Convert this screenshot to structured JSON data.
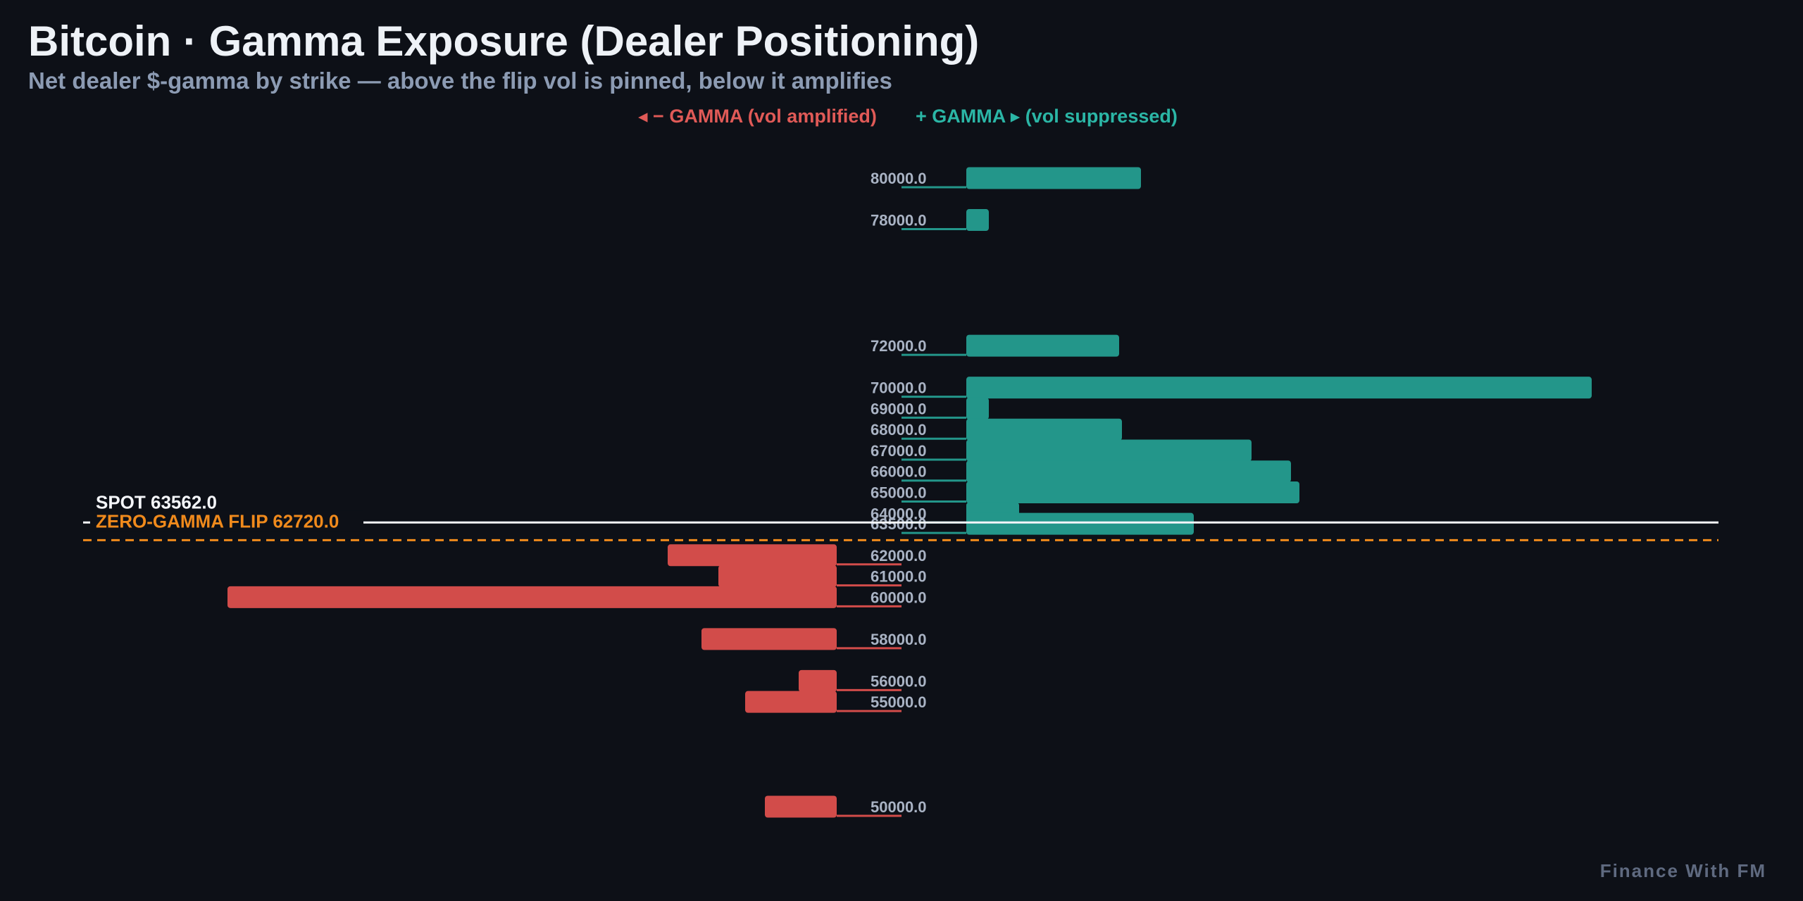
{
  "title": "Bitcoin · Gamma Exposure (Dealer Positioning)",
  "subtitle": "Net dealer $-gamma by strike — above the flip vol is pinned, below it amplifies",
  "legend": {
    "negative": "◂ − GAMMA (vol amplified)",
    "positive": "+ GAMMA ▸ (vol suppressed)"
  },
  "footer": "Finance With FM",
  "colors": {
    "background": "#0d1017",
    "positive": "#23968a",
    "negative": "#d24c4a",
    "spot": "#f4f6fa",
    "flip": "#f08a1c",
    "strike_label": "#a9b3c4"
  },
  "chart_data": {
    "type": "bar",
    "orientation": "horizontal",
    "y_axis": "strike",
    "x_axis": "net dealer $-gamma",
    "ylim": [
      48000,
      82000
    ],
    "strikes": [
      {
        "label": "80000.0",
        "strike": 80000,
        "gamma": 248
      },
      {
        "label": "78000.0",
        "strike": 78000,
        "gamma": 32
      },
      {
        "label": "72000.0",
        "strike": 72000,
        "gamma": 217
      },
      {
        "label": "70000.0",
        "strike": 70000,
        "gamma": 888
      },
      {
        "label": "69000.0",
        "strike": 69000,
        "gamma": 32
      },
      {
        "label": "68000.0",
        "strike": 68000,
        "gamma": 221
      },
      {
        "label": "67000.0",
        "strike": 67000,
        "gamma": 405
      },
      {
        "label": "66000.0",
        "strike": 66000,
        "gamma": 461
      },
      {
        "label": "65000.0",
        "strike": 65000,
        "gamma": 473
      },
      {
        "label": "64000.0",
        "strike": 64000,
        "gamma": 75
      },
      {
        "label": "63500.0",
        "strike": 63500,
        "gamma": 323
      },
      {
        "label": "62000.0",
        "strike": 62000,
        "gamma": -240
      },
      {
        "label": "61000.0",
        "strike": 61000,
        "gamma": -168
      },
      {
        "label": "60000.0",
        "strike": 60000,
        "gamma": -865
      },
      {
        "label": "58000.0",
        "strike": 58000,
        "gamma": -192
      },
      {
        "label": "56000.0",
        "strike": 56000,
        "gamma": -54
      },
      {
        "label": "55000.0",
        "strike": 55000,
        "gamma": -130
      },
      {
        "label": "50000.0",
        "strike": 50000,
        "gamma": -102
      }
    ],
    "spot": {
      "label": "SPOT 63562.0",
      "value": 63562.0
    },
    "zero_gamma_flip": {
      "label": "ZERO-GAMMA FLIP 62720.0",
      "value": 62720.0
    }
  }
}
